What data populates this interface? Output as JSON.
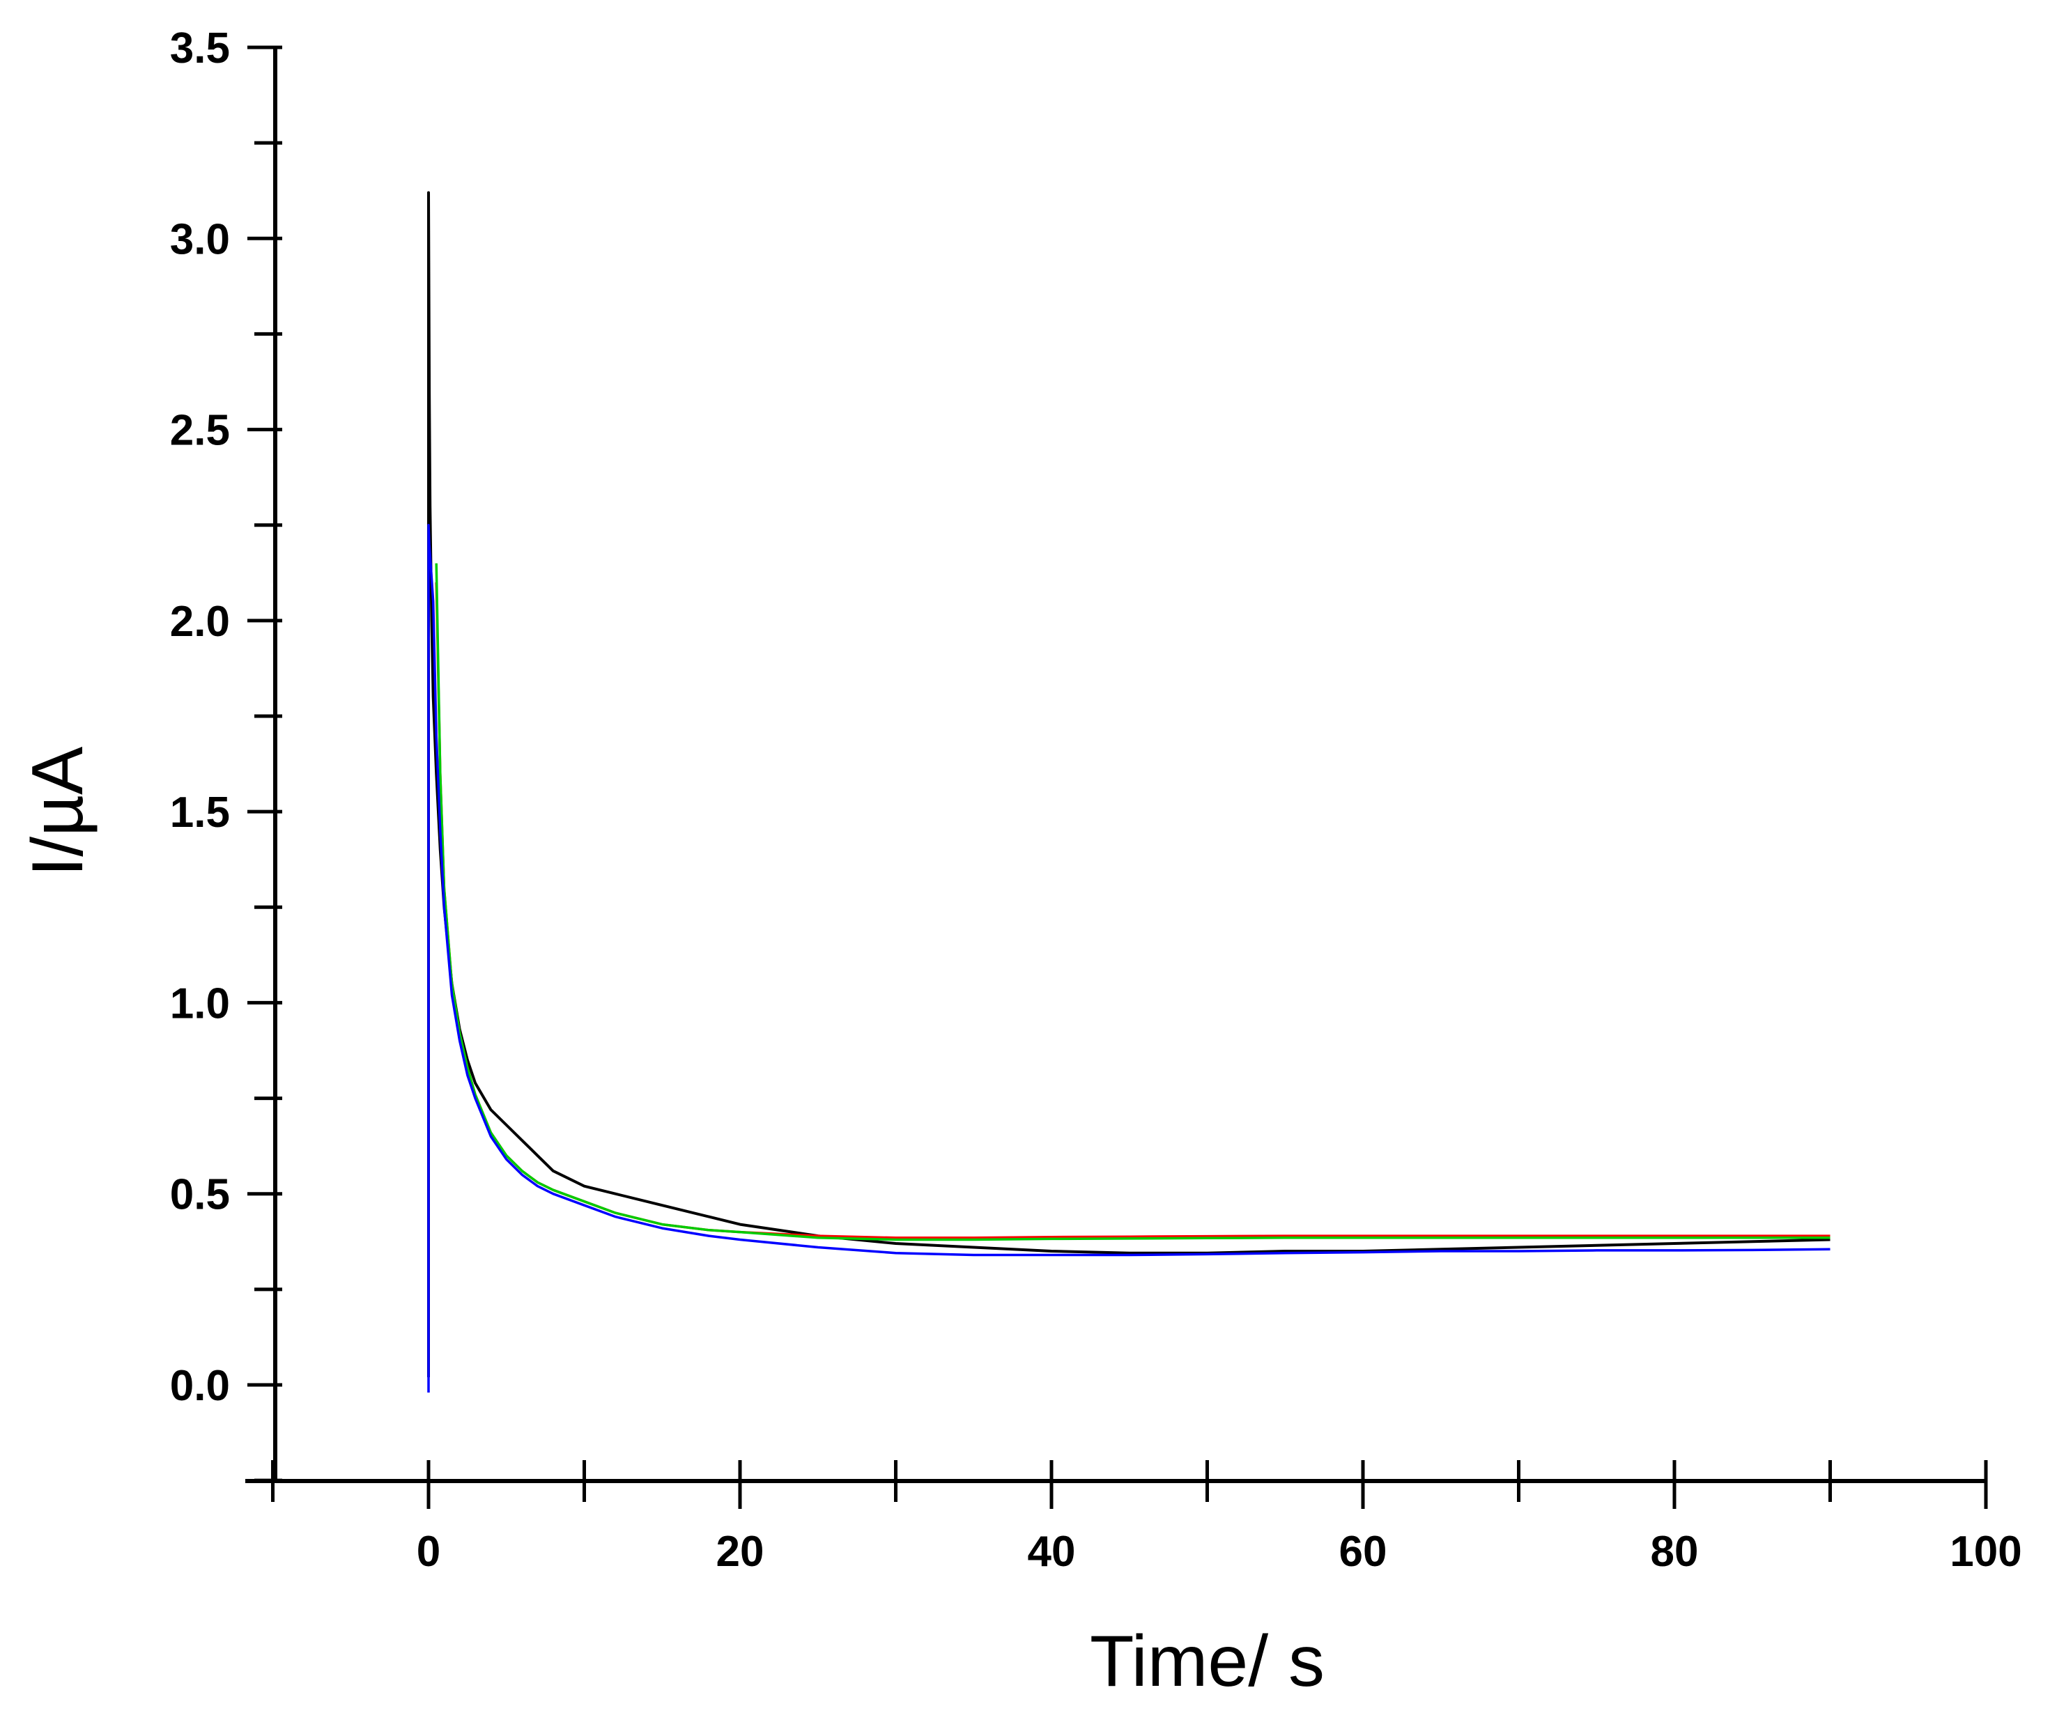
{
  "chart_data": {
    "type": "line",
    "title": "",
    "xlabel": "Time/ s",
    "ylabel": "I/µA",
    "xlim": [
      -10,
      100
    ],
    "ylim": [
      -0.25,
      3.5
    ],
    "x_ticks": [
      "0",
      "20",
      "40",
      "60",
      "80",
      "100"
    ],
    "y_ticks": [
      "0.0",
      "0.5",
      "1.0",
      "1.5",
      "2.0",
      "2.5",
      "3.0",
      "3.5"
    ],
    "grid": false,
    "legend": "none",
    "series": [
      {
        "color": "#000000",
        "x": [
          0,
          0,
          0.05,
          0.1,
          0.2,
          0.3,
          0.5,
          0.75,
          1,
          1.5,
          2,
          2.5,
          3,
          4,
          5,
          6,
          7,
          8,
          10,
          12,
          15,
          18,
          20,
          25,
          30,
          35,
          40,
          45,
          50,
          55,
          60,
          65,
          70,
          75,
          80,
          85,
          90
        ],
        "y": [
          0.02,
          3.12,
          2.6,
          2.3,
          2.0,
          1.8,
          1.6,
          1.4,
          1.25,
          1.05,
          0.93,
          0.85,
          0.79,
          0.72,
          0.68,
          0.64,
          0.6,
          0.56,
          0.52,
          0.5,
          0.47,
          0.44,
          0.42,
          0.39,
          0.37,
          0.36,
          0.35,
          0.345,
          0.345,
          0.35,
          0.35,
          0.355,
          0.36,
          0.365,
          0.37,
          0.375,
          0.38
        ]
      },
      {
        "color": "#ff0000",
        "x": [
          0.5,
          0.75,
          1,
          1.5,
          2,
          2.5,
          3,
          4,
          5,
          6,
          7,
          8,
          10,
          12,
          15,
          18,
          20,
          25,
          30,
          35,
          40,
          45,
          50,
          55,
          60,
          65,
          70,
          75,
          80,
          85,
          90
        ],
        "y": [
          2.1,
          1.6,
          1.3,
          1.05,
          0.92,
          0.83,
          0.76,
          0.66,
          0.6,
          0.56,
          0.53,
          0.51,
          0.48,
          0.45,
          0.42,
          0.405,
          0.4,
          0.39,
          0.385,
          0.385,
          0.387,
          0.388,
          0.389,
          0.39,
          0.39,
          0.39,
          0.39,
          0.39,
          0.39,
          0.39,
          0.39
        ]
      },
      {
        "color": "#00cc00",
        "x": [
          0.5,
          0.75,
          1,
          1.5,
          2,
          2.5,
          3,
          4,
          5,
          6,
          7,
          8,
          10,
          12,
          15,
          18,
          20,
          25,
          30,
          35,
          40,
          45,
          50,
          55,
          60,
          65,
          70,
          75,
          80,
          85,
          90
        ],
        "y": [
          2.15,
          1.6,
          1.3,
          1.05,
          0.92,
          0.83,
          0.76,
          0.66,
          0.6,
          0.56,
          0.53,
          0.51,
          0.48,
          0.45,
          0.42,
          0.405,
          0.4,
          0.385,
          0.38,
          0.38,
          0.382,
          0.383,
          0.384,
          0.385,
          0.385,
          0.385,
          0.385,
          0.385,
          0.385,
          0.385,
          0.385
        ]
      },
      {
        "color": "#0000ff",
        "x": [
          0,
          0,
          0.05,
          0.3,
          0.5,
          0.75,
          1,
          1.5,
          2,
          2.5,
          3,
          4,
          5,
          6,
          7,
          8,
          10,
          12,
          15,
          18,
          20,
          25,
          30,
          35,
          40,
          45,
          50,
          55,
          60,
          65,
          70,
          75,
          80,
          85,
          90
        ],
        "y": [
          -0.02,
          2.25,
          2.2,
          2.05,
          1.7,
          1.45,
          1.25,
          1.02,
          0.9,
          0.81,
          0.75,
          0.65,
          0.59,
          0.55,
          0.52,
          0.5,
          0.47,
          0.44,
          0.41,
          0.39,
          0.38,
          0.36,
          0.345,
          0.34,
          0.34,
          0.34,
          0.342,
          0.345,
          0.347,
          0.35,
          0.35,
          0.352,
          0.352,
          0.353,
          0.355
        ]
      }
    ]
  }
}
